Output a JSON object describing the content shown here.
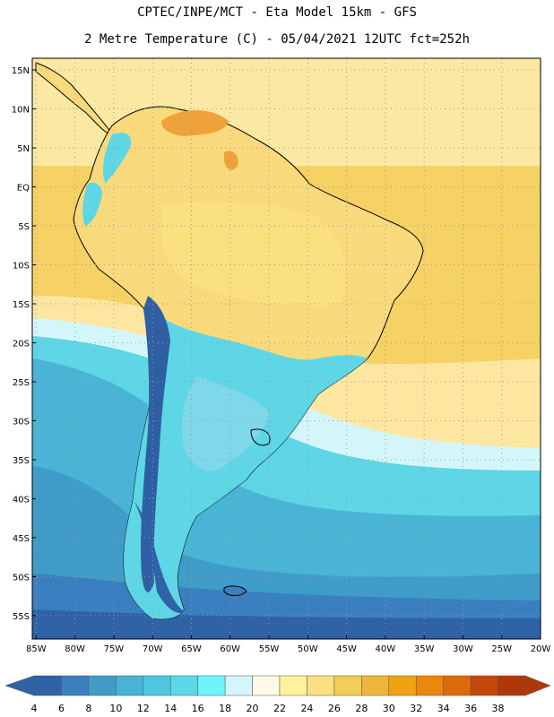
{
  "title_line1": "CPTEC/INPE/MCT -  Eta Model 15km - GFS",
  "title_line2": "2 Metre Temperature (C) - 05/04/2021 12UTC fct=252h",
  "lat_labels": [
    "15N",
    "10N",
    "5N",
    "EQ",
    "5S",
    "10S",
    "15S",
    "20S",
    "25S",
    "30S",
    "35S",
    "40S",
    "45S",
    "50S",
    "55S"
  ],
  "lat_values": [
    15,
    10,
    5,
    0,
    -5,
    -10,
    -15,
    -20,
    -25,
    -30,
    -35,
    -40,
    -45,
    -50,
    -55
  ],
  "lon_labels": [
    "85W",
    "80W",
    "75W",
    "70W",
    "65W",
    "60W",
    "55W",
    "50W",
    "45W",
    "40W",
    "35W",
    "30W",
    "25W",
    "20W"
  ],
  "lon_values": [
    -85,
    -80,
    -75,
    -70,
    -65,
    -60,
    -55,
    -50,
    -45,
    -40,
    -35,
    -30,
    -25,
    -20
  ],
  "map_extent": {
    "lon_min": -85.5,
    "lon_max": -20,
    "lat_min": -58,
    "lat_max": 16.5
  },
  "colorbar": {
    "labels": [
      "4",
      "6",
      "8",
      "10",
      "12",
      "14",
      "16",
      "18",
      "20",
      "22",
      "24",
      "26",
      "28",
      "30",
      "32",
      "34",
      "36",
      "38"
    ],
    "colors": [
      "#2f62a7",
      "#3a7fbf",
      "#3f9cc9",
      "#47b3d6",
      "#4fc6df",
      "#5cd8e8",
      "#6ff3fb",
      "#d4f6fa",
      "#fffae6",
      "#fef39a",
      "#fbe07f",
      "#f4cc58",
      "#efb53a",
      "#f0a214",
      "#e9870f",
      "#dd6a0c",
      "#c24708",
      "#b03808"
    ],
    "low_arrow_color": "#2f62a7",
    "high_arrow_color": "#b03808"
  },
  "colors": {
    "ocean_warm": "#f6d164",
    "ocean_warm_north": "#fbe9a3",
    "ocean_cool_1": "#5ed6e6",
    "ocean_cool_2": "#49b4d5",
    "ocean_cold": "#2f62a7",
    "land_warm": "#f8da7c",
    "land_hot": "#efa23a",
    "andes": "#2f5fa3",
    "land_south": "#7fd7ea",
    "grid": "#9a9a9a"
  }
}
